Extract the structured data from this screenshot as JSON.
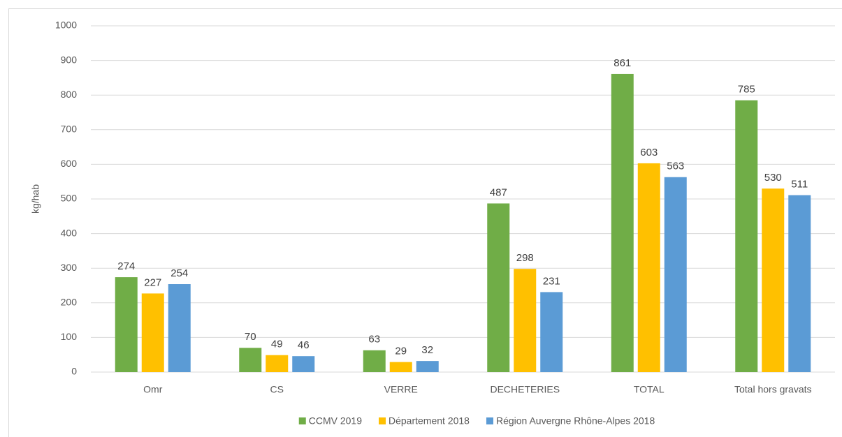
{
  "chart_data": {
    "type": "bar",
    "y_label": "kg/hab",
    "categories": [
      "Omr",
      "CS",
      "VERRE",
      "DECHETERIES",
      "TOTAL",
      "Total hors gravats"
    ],
    "series": [
      {
        "name": "CCMV 2019",
        "color": "#70ad47",
        "values": [
          274,
          70,
          63,
          487,
          861,
          785
        ]
      },
      {
        "name": "Département 2018",
        "color": "#ffc000",
        "values": [
          227,
          49,
          29,
          298,
          603,
          530
        ]
      },
      {
        "name": "Région Auvergne Rhône-Alpes 2018",
        "color": "#5b9bd5",
        "values": [
          254,
          46,
          32,
          231,
          563,
          511
        ]
      }
    ],
    "ylim": [
      0,
      1000
    ],
    "yticks": [
      0,
      100,
      200,
      300,
      400,
      500,
      600,
      700,
      800,
      900,
      1000
    ],
    "grid": true,
    "legend": "bottom"
  }
}
